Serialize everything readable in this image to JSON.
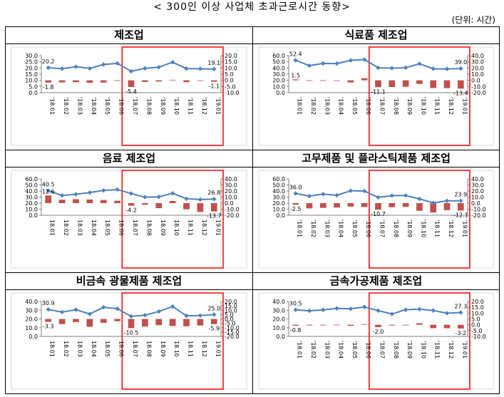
{
  "header": {
    "title": "< 300인 이상 사업체 초과근로시간 동향>",
    "unit": "(단위: 시간)"
  },
  "colors": {
    "line": "#4f81bd",
    "bar": "#c0504d",
    "highlight": "#ff0000",
    "frame": "#000000"
  },
  "chart_data": [
    {
      "type": "line+bar",
      "title": "제조업",
      "categories": [
        "'18.01",
        "'18.02",
        "'18.03",
        "'18.04",
        "'18.05",
        "'18.06",
        "'18.07",
        "'18.08",
        "'18.09",
        "'18.10",
        "'18.11",
        "'18.12",
        "'19.01"
      ],
      "ylim_left": [
        0,
        30
      ],
      "yticks_left": [
        "30.0",
        "25.0",
        "20.0",
        "15.0",
        "10.0",
        "5.0",
        "0.0"
      ],
      "ylim_right": [
        -10,
        20
      ],
      "yticks_right": [
        "20.0",
        "15.0",
        "10.0",
        "5.0",
        "0.0",
        "-5.0",
        "-10.0"
      ],
      "series": [
        {
          "type": "line",
          "axis": "left",
          "values": [
            20.2,
            19.4,
            21.0,
            19.6,
            22.8,
            23.7,
            17.3,
            19.7,
            20.6,
            24.6,
            19.5,
            19.3,
            19.1
          ]
        },
        {
          "type": "bar",
          "axis": "right",
          "values": [
            -1.8,
            -1.7,
            -1.5,
            -2.0,
            -1.8,
            -0.2,
            -5.4,
            -1.3,
            -1.0,
            0.4,
            -1.5,
            -0.4,
            -1.1
          ]
        }
      ],
      "data_labels": [
        {
          "series": 0,
          "index": 0,
          "text": "20.2"
        },
        {
          "series": 0,
          "index": 12,
          "text": "19.1"
        },
        {
          "series": 1,
          "index": 0,
          "text": "-1.8"
        },
        {
          "series": 1,
          "index": 6,
          "text": "-5.4"
        },
        {
          "series": 1,
          "index": 12,
          "text": "-1.1"
        }
      ],
      "highlight_range": [
        "'18.07",
        "'19.01"
      ]
    },
    {
      "type": "line+bar",
      "title": "식료품 제조업",
      "categories": [
        "'18.01",
        "'18.02",
        "'18.03",
        "'18.04",
        "'18.05",
        "'18.06",
        "'18.07",
        "'18.08",
        "'18.09",
        "'18.10",
        "'18.11",
        "'18.12",
        "'19.01"
      ],
      "ylim_left": [
        0,
        60
      ],
      "yticks_left": [
        "60.0",
        "50.0",
        "40.0",
        "30.0",
        "20.0",
        "10.0",
        "0.0"
      ],
      "ylim_right": [
        -20,
        40
      ],
      "yticks_right": [
        "40.0",
        "30.0",
        "20.0",
        "10.0",
        "0.0",
        "-10.0",
        "-20.0"
      ],
      "series": [
        {
          "type": "line",
          "axis": "left",
          "values": [
            52.4,
            43.8,
            47.3,
            47.2,
            52.2,
            53.6,
            40.2,
            39.7,
            40.4,
            46.8,
            38.7,
            38.4,
            39.0
          ]
        },
        {
          "type": "bar",
          "axis": "right",
          "values": [
            1.5,
            -0.5,
            -0.6,
            -0.8,
            -3.5,
            3.3,
            -11.1,
            -10.8,
            -10.4,
            -5.9,
            -12.5,
            -12.7,
            -13.4
          ]
        }
      ],
      "data_labels": [
        {
          "series": 0,
          "index": 0,
          "text": "52.4"
        },
        {
          "series": 0,
          "index": 12,
          "text": "39.0"
        },
        {
          "series": 1,
          "index": 0,
          "text": "1.5"
        },
        {
          "series": 1,
          "index": 6,
          "text": "-11.1"
        },
        {
          "series": 1,
          "index": 12,
          "text": "-13.4"
        }
      ],
      "highlight_range": [
        "'18.07",
        "'19.01"
      ]
    },
    {
      "type": "line+bar",
      "title": "음료 제조업",
      "categories": [
        "18.01",
        "18.02",
        "18.03",
        "18.04",
        "18.05",
        "18.06",
        "18.07",
        "18.08",
        "18.09",
        "18.10",
        "18.11",
        "18.12",
        "19.01"
      ],
      "ylim_left": [
        0,
        60
      ],
      "yticks_left": [
        "60.0",
        "50.0",
        "40.0",
        "30.0",
        "20.0",
        "10.0",
        "0.0"
      ],
      "ylim_right": [
        -20,
        40
      ],
      "yticks_right": [
        "40.0",
        "30.0",
        "20.0",
        "10.0",
        "0.0",
        "-10.0",
        "-20.0"
      ],
      "series": [
        {
          "type": "line",
          "axis": "left",
          "values": [
            40.5,
            32.7,
            34.6,
            37.5,
            41.0,
            42.4,
            35.8,
            29.9,
            30.3,
            36.2,
            27.3,
            26.0,
            26.8
          ]
        },
        {
          "type": "bar",
          "axis": "right",
          "values": [
            12.6,
            5.6,
            6.5,
            5.9,
            5.2,
            3.9,
            -4.2,
            -2.5,
            -8.3,
            3.6,
            -10.2,
            -14.5,
            -13.7
          ]
        }
      ],
      "data_labels": [
        {
          "series": 0,
          "index": 0,
          "text": "40.5"
        },
        {
          "series": 0,
          "index": 12,
          "text": "26.8"
        },
        {
          "series": 1,
          "index": 0,
          "text": "12.6"
        },
        {
          "series": 1,
          "index": 6,
          "text": "-4.2"
        },
        {
          "series": 1,
          "index": 12,
          "text": "-13.7"
        }
      ],
      "highlight_range": [
        "18.07",
        "19.01"
      ]
    },
    {
      "type": "line+bar",
      "title": "고무제품 및 플라스틱제품 제조업",
      "categories": [
        "'18.01",
        "'18.02",
        "'18.03",
        "'18.04",
        "'18.05",
        "'18.06",
        "'18.07",
        "'18.08",
        "'18.09",
        "'18.10",
        "'18.11",
        "'18.12",
        "'19.01"
      ],
      "ylim_left": [
        0,
        60
      ],
      "yticks_left": [
        "60.0",
        "50.0",
        "40.0",
        "30.0",
        "20.0",
        "10.0",
        "0.0"
      ],
      "ylim_right": [
        -20,
        40
      ],
      "yticks_right": [
        "40.0",
        "30.0",
        "20.0",
        "10.0",
        "0.0",
        "-10.0",
        "-20.0"
      ],
      "series": [
        {
          "type": "line",
          "axis": "left",
          "values": [
            36.0,
            31.6,
            35.0,
            33.0,
            40.5,
            39.9,
            29.5,
            32.4,
            32.7,
            26.9,
            20.5,
            23.7,
            23.9
          ]
        },
        {
          "type": "bar",
          "axis": "right",
          "values": [
            -2.5,
            -8.7,
            -7.8,
            -7.3,
            -5.7,
            -6.4,
            -10.7,
            -6.7,
            -6.3,
            -12.6,
            -15.5,
            -11.5,
            -12.1
          ]
        }
      ],
      "data_labels": [
        {
          "series": 0,
          "index": 0,
          "text": "36.0"
        },
        {
          "series": 0,
          "index": 12,
          "text": "23.9"
        },
        {
          "series": 1,
          "index": 0,
          "text": "-2.5"
        },
        {
          "series": 1,
          "index": 6,
          "text": "-10.7"
        },
        {
          "series": 1,
          "index": 12,
          "text": "-12.1"
        }
      ],
      "highlight_range": [
        "'18.07",
        "'19.01"
      ]
    },
    {
      "type": "line+bar",
      "title": "비금속 광물제품 제조업",
      "categories": [
        "18.01",
        "18.02",
        "18.03",
        "18.04",
        "18.05",
        "18.06",
        "18.07",
        "18.08",
        "18.09",
        "18.10",
        "18.11",
        "18.12",
        "19.01"
      ],
      "ylim_left": [
        0,
        40
      ],
      "yticks_left": [
        "40.0",
        "30.0",
        "20.0",
        "10.0",
        "0.0"
      ],
      "ylim_right": [
        -20,
        20
      ],
      "yticks_right": [
        "20.0",
        "15.0",
        "10.0",
        "5.0",
        "0.0",
        "-5.0",
        "-10.0",
        "-15.0",
        "-20.0"
      ],
      "series": [
        {
          "type": "line",
          "axis": "left",
          "values": [
            30.9,
            27.9,
            30.6,
            25.7,
            33.4,
            31.7,
            23.0,
            24.3,
            28.5,
            34.2,
            23.6,
            23.9,
            25.0
          ]
        },
        {
          "type": "bar",
          "axis": "right",
          "values": [
            -3.3,
            -5.9,
            -3.6,
            -8.9,
            -4.4,
            -2.6,
            -10.5,
            -8.7,
            -7.1,
            -8.1,
            -8.4,
            -7.5,
            -5.9
          ]
        }
      ],
      "data_labels": [
        {
          "series": 0,
          "index": 0,
          "text": "30.9"
        },
        {
          "series": 0,
          "index": 12,
          "text": "25.0"
        },
        {
          "series": 1,
          "index": 0,
          "text": "-3.3"
        },
        {
          "series": 1,
          "index": 6,
          "text": "-10.5"
        },
        {
          "series": 1,
          "index": 12,
          "text": "-5.9"
        }
      ],
      "highlight_range": [
        "18.07",
        "19.01"
      ]
    },
    {
      "type": "line+bar",
      "title": "금속가공제품 제조업",
      "categories": [
        "'18.01",
        "'18.02",
        "'18.03",
        "'18.04",
        "'18.05",
        "'18.06",
        "'18.07",
        "'18.08",
        "'18.09",
        "'18.10",
        "'18.11",
        "'18.12",
        "'19.01"
      ],
      "ylim_left": [
        0,
        40
      ],
      "yticks_left": [
        "40.0",
        "30.0",
        "20.0",
        "10.0",
        "0.0"
      ],
      "ylim_right": [
        -10,
        20
      ],
      "yticks_right": [
        "20.0",
        "15.0",
        "10.0",
        "5.0",
        "0.0",
        "-5.0",
        "-10.0"
      ],
      "series": [
        {
          "type": "line",
          "axis": "left",
          "values": [
            30.5,
            29.3,
            30.4,
            32.1,
            31.6,
            33.7,
            29.5,
            25.7,
            30.6,
            31.2,
            29.7,
            26.6,
            27.3
          ]
        },
        {
          "type": "bar",
          "axis": "right",
          "values": [
            -0.8,
            -0.6,
            -0.5,
            -0.4,
            -0.9,
            0.5,
            -2.0,
            -0.6,
            -0.3,
            1.3,
            -2.9,
            -3.0,
            -3.2
          ]
        }
      ],
      "data_labels": [
        {
          "series": 0,
          "index": 0,
          "text": "30.5"
        },
        {
          "series": 0,
          "index": 12,
          "text": "27.3"
        },
        {
          "series": 1,
          "index": 0,
          "text": "-0.8"
        },
        {
          "series": 1,
          "index": 6,
          "text": "-2.0"
        },
        {
          "series": 1,
          "index": 12,
          "text": "-3.2"
        }
      ],
      "highlight_range": [
        "'18.07",
        "'19.01"
      ]
    }
  ]
}
